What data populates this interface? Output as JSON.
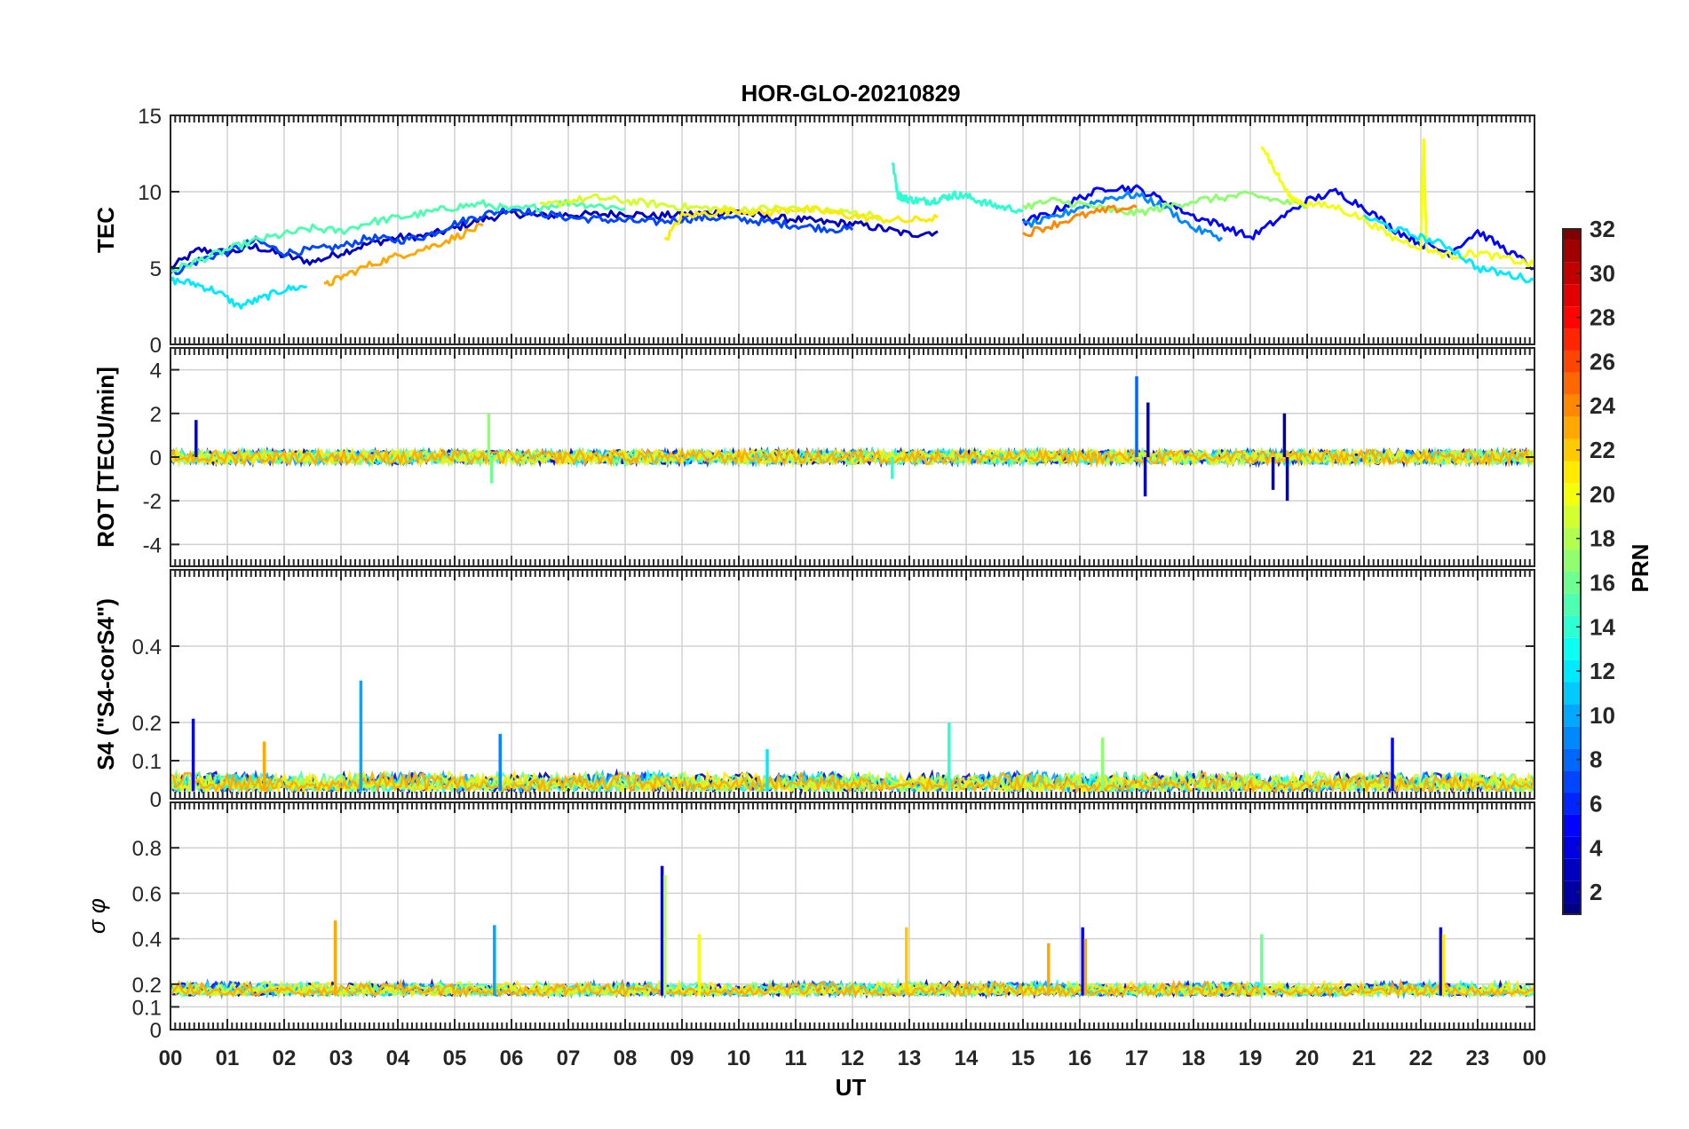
{
  "chart_data": {
    "type": "line",
    "title": "HOR-GLO-20210829",
    "xlabel": "UT",
    "x_ticks": [
      "00",
      "01",
      "02",
      "03",
      "04",
      "05",
      "06",
      "07",
      "08",
      "09",
      "10",
      "11",
      "12",
      "13",
      "14",
      "15",
      "16",
      "17",
      "18",
      "19",
      "20",
      "21",
      "22",
      "23",
      "00"
    ],
    "xlim": [
      0,
      24
    ],
    "grid": true,
    "colorbar": {
      "label": "PRN",
      "range": [
        1,
        32
      ],
      "ticks": [
        "2",
        "4",
        "6",
        "8",
        "10",
        "12",
        "14",
        "16",
        "18",
        "20",
        "22",
        "24",
        "26",
        "28",
        "30",
        "32"
      ],
      "colormap": "jet",
      "placement": "right"
    },
    "panels": [
      {
        "name": "tec",
        "ylabel": "TEC",
        "ylim": [
          0,
          15
        ],
        "yticks": [
          "0",
          "5",
          "10",
          "15"
        ],
        "ytick_values": [
          0,
          5,
          10,
          15
        ],
        "series": [
          {
            "prn": 3,
            "x": [
              0.0,
              0.5,
              1.0,
              1.5,
              2.0,
              2.5,
              3.0,
              3.5,
              4.0,
              4.5,
              5.0,
              5.5,
              6.0,
              6.5,
              7.0,
              7.5,
              8.0,
              8.5,
              9.0,
              9.5,
              10.0,
              10.5,
              11.0,
              11.5,
              12.0,
              12.5,
              13.0,
              13.5
            ],
            "y": [
              5.0,
              6.2,
              6.0,
              6.4,
              5.8,
              5.4,
              6.0,
              6.6,
              7.0,
              7.1,
              7.6,
              8.2,
              8.6,
              8.4,
              8.5,
              8.5,
              8.6,
              8.4,
              8.5,
              8.6,
              8.7,
              8.3,
              8.2,
              8.0,
              7.9,
              7.6,
              7.2,
              7.4
            ]
          },
          {
            "prn": 7,
            "x": [
              0.0,
              0.5,
              1.0,
              1.5,
              2.0,
              2.5,
              3.0,
              3.5,
              4.0,
              4.5,
              5.0,
              5.5,
              6.0,
              6.5,
              7.0,
              7.5,
              8.0,
              8.5,
              9.0,
              9.5,
              10.0,
              10.5,
              11.0,
              11.5,
              12.0
            ],
            "y": [
              4.6,
              5.5,
              6.1,
              6.8,
              6.0,
              6.2,
              6.4,
              7.0,
              6.8,
              7.1,
              7.9,
              8.5,
              8.9,
              8.6,
              8.3,
              8.2,
              8.1,
              8.0,
              8.2,
              8.3,
              8.2,
              8.0,
              7.8,
              7.6,
              7.5
            ]
          },
          {
            "prn": 12,
            "x": [
              0.0,
              0.4,
              0.8,
              1.2,
              1.6,
              2.0,
              2.4
            ],
            "y": [
              4.2,
              4.0,
              3.5,
              2.5,
              3.0,
              3.6,
              3.8
            ]
          },
          {
            "prn": 15,
            "x": [
              0.0,
              0.5,
              1.0,
              1.5,
              2.0,
              2.5,
              3.0,
              3.5,
              4.0,
              4.5,
              5.0,
              5.5,
              6.0,
              6.5,
              7.0,
              7.5,
              8.0
            ],
            "y": [
              4.8,
              5.5,
              6.2,
              6.8,
              7.2,
              7.6,
              7.4,
              8.0,
              8.3,
              8.6,
              9.0,
              9.2,
              8.8,
              9.0,
              9.3,
              9.1,
              8.9
            ]
          },
          {
            "prn": 14,
            "x": [
              12.7,
              12.8,
              12.9,
              13.0,
              13.2,
              13.4,
              13.6,
              13.8,
              14.0,
              14.3,
              14.6,
              15.0
            ],
            "y": [
              12.0,
              9.8,
              9.6,
              9.5,
              9.4,
              9.4,
              9.6,
              9.8,
              9.7,
              9.3,
              9.0,
              8.8
            ]
          },
          {
            "prn": 23,
            "x": [
              2.7,
              3.0,
              3.5,
              4.0,
              4.5,
              5.0,
              5.5
            ],
            "y": [
              3.8,
              4.4,
              5.2,
              5.8,
              6.3,
              7.0,
              7.8
            ]
          },
          {
            "prn": 19,
            "x": [
              6.5,
              7.0,
              7.5,
              8.0,
              8.5,
              9.0,
              9.5,
              10.0,
              10.5,
              11.0,
              11.5,
              12.0,
              12.5
            ],
            "y": [
              9.0,
              9.4,
              9.6,
              9.4,
              9.2,
              9.0,
              8.9,
              8.8,
              8.9,
              8.9,
              8.8,
              8.6,
              8.4
            ]
          },
          {
            "prn": 21,
            "x": [
              8.7,
              9.0,
              9.5,
              10.0,
              10.5,
              11.0,
              11.5,
              12.0,
              12.5,
              13.0,
              13.5
            ],
            "y": [
              6.8,
              8.4,
              8.6,
              8.8,
              8.6,
              8.9,
              8.7,
              8.4,
              8.2,
              8.1,
              8.3
            ]
          },
          {
            "prn": 5,
            "x": [
              15.0,
              15.5,
              16.0,
              16.5,
              17.0,
              17.5,
              18.0,
              18.5,
              19.0,
              19.5,
              20.0,
              20.5,
              21.0,
              21.5,
              22.0,
              22.5,
              23.0,
              23.5,
              24.0
            ],
            "y": [
              8.0,
              8.6,
              9.6,
              10.3,
              10.2,
              9.4,
              8.4,
              7.8,
              7.0,
              8.2,
              9.4,
              10.0,
              9.0,
              7.6,
              6.6,
              6.0,
              7.4,
              6.2,
              5.0
            ]
          },
          {
            "prn": 9,
            "x": [
              15.0,
              15.5,
              16.0,
              16.5,
              17.0,
              17.5,
              18.0,
              18.5
            ],
            "y": [
              7.8,
              8.2,
              9.0,
              9.6,
              9.8,
              9.0,
              7.6,
              7.0
            ]
          },
          {
            "prn": 17,
            "x": [
              15.0,
              15.5,
              16.0,
              16.5,
              17.0,
              17.5,
              18.0,
              18.5,
              19.0,
              19.5,
              20.0
            ],
            "y": [
              9.0,
              9.4,
              9.2,
              8.8,
              8.6,
              9.0,
              9.4,
              9.6,
              9.8,
              9.4,
              9.0
            ]
          },
          {
            "prn": 20,
            "x": [
              19.2,
              19.4,
              19.7,
              20.0,
              20.5,
              21.0,
              21.5,
              22.0,
              22.05,
              22.1,
              22.5,
              23.0,
              23.5,
              24.0
            ],
            "y": [
              13.2,
              11.6,
              9.6,
              9.2,
              9.0,
              8.2,
              7.0,
              6.4,
              13.6,
              6.2,
              5.8,
              6.0,
              5.6,
              5.2
            ]
          },
          {
            "prn": 12,
            "x": [
              21.0,
              21.5,
              22.0,
              22.5,
              23.0,
              23.5,
              24.0
            ],
            "y": [
              8.4,
              7.6,
              7.0,
              6.4,
              5.0,
              4.6,
              4.2
            ]
          },
          {
            "prn": 24,
            "x": [
              15.0,
              15.5,
              16.0,
              16.5,
              17.0
            ],
            "y": [
              7.2,
              7.8,
              8.4,
              8.8,
              9.0
            ]
          }
        ]
      },
      {
        "name": "rot",
        "ylabel": "ROT [TECU/min]",
        "ylim": [
          -5,
          5
        ],
        "yticks": [
          "-4",
          "-2",
          "0",
          "2",
          "4"
        ],
        "ytick_values": [
          -4,
          -2,
          0,
          2,
          4
        ],
        "spikes": [
          {
            "prn": 4,
            "x": 0.45,
            "y": 1.7
          },
          {
            "prn": 17,
            "x": 5.6,
            "y": 2.0
          },
          {
            "prn": 16,
            "x": 5.65,
            "y": -1.2
          },
          {
            "prn": 14,
            "x": 12.7,
            "y": -1.0
          },
          {
            "prn": 8,
            "x": 17.0,
            "y": 3.7
          },
          {
            "prn": 3,
            "x": 17.15,
            "y": -1.8
          },
          {
            "prn": 3,
            "x": 17.2,
            "y": 2.5
          },
          {
            "prn": 2,
            "x": 19.4,
            "y": -1.5
          },
          {
            "prn": 2,
            "x": 19.6,
            "y": 2.0
          },
          {
            "prn": 2,
            "x": 19.65,
            "y": -2.0
          }
        ],
        "noise_amplitude": 0.4
      },
      {
        "name": "s4",
        "ylabel": "S4 (\"S4-corS4\")",
        "ylim": [
          0,
          0.6
        ],
        "yticks": [
          "0",
          "0.1",
          "0.2",
          "0.4"
        ],
        "ytick_values": [
          0,
          0.1,
          0.2,
          0.4
        ],
        "spikes": [
          {
            "prn": 10,
            "x": 3.35,
            "y": 0.31
          },
          {
            "prn": 23,
            "x": 1.65,
            "y": 0.15
          },
          {
            "prn": 4,
            "x": 0.4,
            "y": 0.21
          },
          {
            "prn": 9,
            "x": 5.8,
            "y": 0.17
          },
          {
            "prn": 14,
            "x": 13.7,
            "y": 0.2
          },
          {
            "prn": 17,
            "x": 16.4,
            "y": 0.16
          },
          {
            "prn": 5,
            "x": 21.5,
            "y": 0.16
          },
          {
            "prn": 12,
            "x": 10.5,
            "y": 0.13
          }
        ],
        "noise_amplitude": 0.05
      },
      {
        "name": "sigma_phi",
        "ylabel": "σ φ",
        "ylim": [
          0,
          1.0
        ],
        "yticks": [
          "0",
          "0.1",
          "0.2",
          "0.4",
          "0.6",
          "0.8"
        ],
        "ytick_values": [
          0,
          0.1,
          0.2,
          0.4,
          0.6,
          0.8
        ],
        "spikes": [
          {
            "prn": 3,
            "x": 8.65,
            "y": 0.72
          },
          {
            "prn": 18,
            "x": 8.7,
            "y": 0.68
          },
          {
            "prn": 23,
            "x": 2.9,
            "y": 0.48
          },
          {
            "prn": 10,
            "x": 5.7,
            "y": 0.46
          },
          {
            "prn": 20,
            "x": 9.3,
            "y": 0.42
          },
          {
            "prn": 22,
            "x": 12.95,
            "y": 0.45
          },
          {
            "prn": 23,
            "x": 15.45,
            "y": 0.38
          },
          {
            "prn": 5,
            "x": 16.05,
            "y": 0.45
          },
          {
            "prn": 23,
            "x": 16.1,
            "y": 0.4
          },
          {
            "prn": 16,
            "x": 19.2,
            "y": 0.42
          },
          {
            "prn": 5,
            "x": 22.35,
            "y": 0.45
          },
          {
            "prn": 21,
            "x": 22.4,
            "y": 0.42
          }
        ],
        "noise_amplitude": 0.06
      }
    ]
  }
}
